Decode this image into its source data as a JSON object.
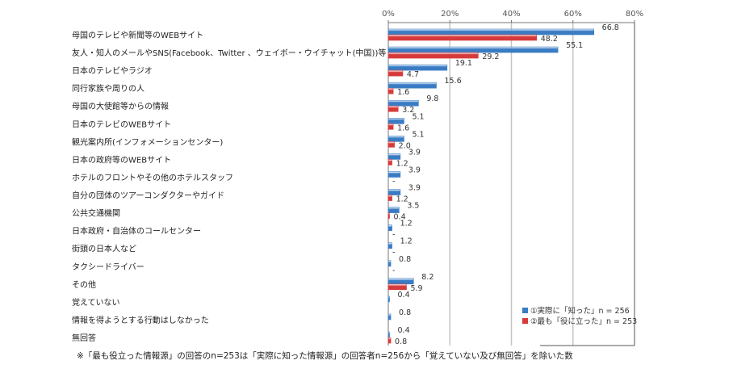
{
  "chart_data": {
    "type": "bar",
    "orientation": "horizontal",
    "categories": [
      "母国のテレビや新聞等のWEBサイト",
      "友人・知人のメールやSNS(Facebook、Twitter 、ウェイボー・ウイチャット(中国))等",
      "日本のテレビやラジオ",
      "同行家族や周りの人",
      "母国の大使館等からの情報",
      "日本のテレビのWEBサイト",
      "観光案内所(インフォメーションセンター)",
      "日本の政府等のWEBサイト",
      "ホテルのフロントやその他のホテルスタッフ",
      "自分の団体のツアーコンダクターやガイド",
      "公共交通機関",
      "日本政府・自治体のコールセンター",
      "街頭の日本人など",
      "タクシードライバー",
      "その他",
      "覚えていない",
      "情報を得ようとする行動はしなかった",
      "無回答"
    ],
    "series": [
      {
        "name": "①実際に「知った」n = 256",
        "color": "#3a7cc4",
        "values": [
          66.8,
          55.1,
          19.1,
          15.6,
          9.8,
          5.1,
          5.1,
          3.9,
          3.9,
          3.9,
          3.5,
          1.2,
          1.2,
          0.8,
          8.2,
          0.4,
          0.8,
          0.4
        ],
        "labels": [
          "66.8",
          "55.1",
          "19.1",
          "15.6",
          "9.8",
          "5.1",
          "5.1",
          "3.9",
          "3.9",
          "3.9",
          "3.5",
          "1.2",
          "1.2",
          "0.8",
          "8.2",
          "0.4",
          "0.8",
          "0.4"
        ]
      },
      {
        "name": "②最も「役に立った」n = 253",
        "color": "#d63a3a",
        "values": [
          48.2,
          29.2,
          4.7,
          1.6,
          3.2,
          1.6,
          2.0,
          1.2,
          0,
          1.2,
          0.4,
          0,
          0,
          0,
          5.9,
          null,
          null,
          0.8
        ],
        "labels": [
          "48.2",
          "29.2",
          "4.7",
          "1.6",
          "3.2",
          "1.6",
          "2.0",
          "1.2",
          "-",
          "1.2",
          "0.4",
          "-",
          "-",
          "-",
          "5.9",
          "",
          "",
          "0.8"
        ]
      }
    ],
    "xlim": [
      0,
      80
    ],
    "xticks": [
      "0%",
      "20%",
      "40%",
      "60%",
      "80%"
    ],
    "grid": true,
    "legend": "bottom-right"
  },
  "footnote": "※「最も役立った情報源」の回答のn=253は「実際に知った情報源」の回答者n=256から「覚えていない及び無回答」を除いた数"
}
